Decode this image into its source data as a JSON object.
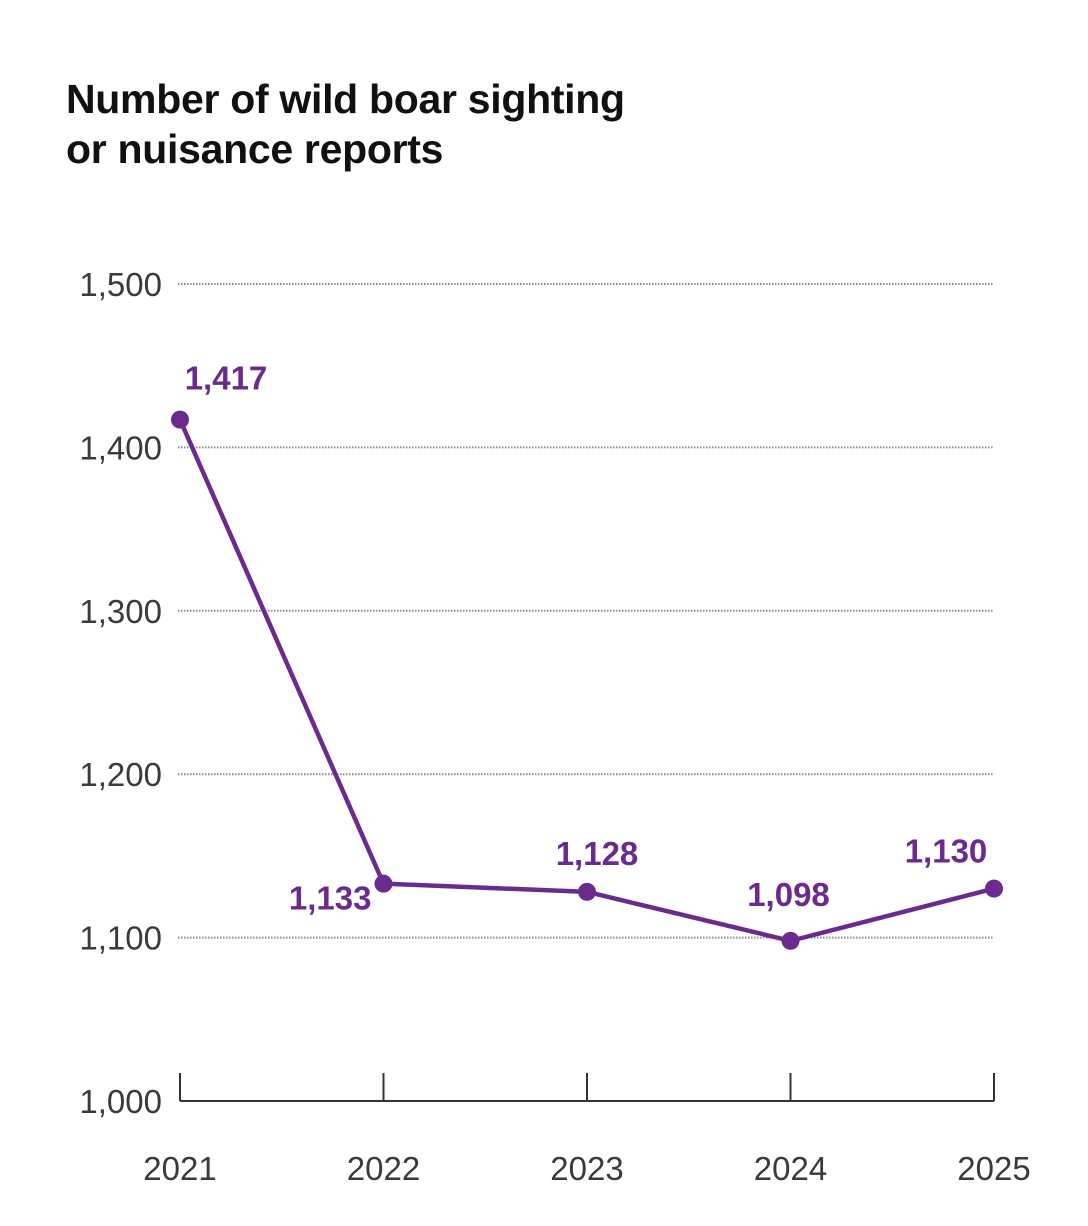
{
  "chart_data": {
    "type": "line",
    "title_lines": [
      "Number of wild boar sighting",
      "or nuisance reports"
    ],
    "xlabel": "",
    "ylabel": "",
    "categories": [
      "2021",
      "2022",
      "2023",
      "2024",
      "2025"
    ],
    "series": [
      {
        "values": [
          1417,
          1133,
          1128,
          1098,
          1130
        ],
        "labels": [
          "1,417",
          "1,133",
          "1,128",
          "1,098",
          "1,130"
        ]
      }
    ],
    "ylim": [
      1000,
      1500
    ],
    "yticks": [
      1000,
      1100,
      1200,
      1300,
      1400,
      1500
    ],
    "ytick_labels": [
      "1,000",
      "1,100",
      "1,200",
      "1,300",
      "1,400",
      "1,500"
    ],
    "grid": "horizontal dotted",
    "legend": "none",
    "colors": {
      "series": "#6b2a8e",
      "grid": "#8a8a8a",
      "axis": "#333333",
      "text": "#111111"
    }
  }
}
